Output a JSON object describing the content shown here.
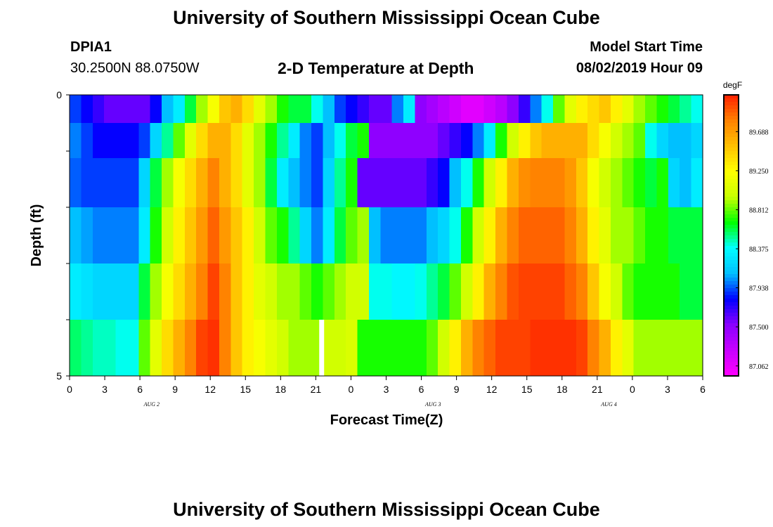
{
  "header": {
    "title": "University of Southern Mississippi Ocean Cube",
    "station_id": "DPIA1",
    "station_coords": "30.2500N 88.0750W",
    "plot_title": "2-D Temperature at Depth",
    "model_label": "Model Start Time",
    "model_start": "08/02/2019 Hour 09"
  },
  "footer": {
    "title": "University of Southern Mississippi Ocean Cube"
  },
  "chart_data": {
    "type": "heatmap",
    "title": "2-D Temperature at Depth",
    "xlabel": "Forecast Time(Z)",
    "ylabel": "Depth (ft)",
    "ylim": [
      0,
      5
    ],
    "y_tick_labels": [
      "0",
      "5"
    ],
    "x_tick_labels": [
      "0",
      "3",
      "6",
      "9",
      "12",
      "15",
      "18",
      "21",
      "0",
      "3",
      "6",
      "9",
      "12",
      "15",
      "18",
      "21",
      "0",
      "3",
      "6"
    ],
    "date_labels": [
      "AUG 2",
      "AUG 3",
      "AUG 4"
    ],
    "colorbar": {
      "unit": "degF",
      "ticks": [
        "89.688",
        "89.250",
        "88.812",
        "88.375",
        "87.938",
        "87.500",
        "87.062"
      ],
      "range": [
        86.95,
        90.1
      ],
      "colors": [
        "#ff00ff",
        "#c800ff",
        "#8a00ff",
        "#0000ff",
        "#00bfff",
        "#00ffff",
        "#00ff00",
        "#c8ff00",
        "#ffff00",
        "#ffc000",
        "#ff8000",
        "#ff2000"
      ]
    },
    "row_depths_ft": [
      0.25,
      0.75,
      1.5,
      2.5,
      3.5,
      4.5
    ],
    "hours": [
      0,
      1,
      2,
      3,
      4,
      5,
      6,
      7,
      8,
      9,
      10,
      11,
      12,
      13,
      14,
      15,
      16,
      17,
      18,
      19,
      20,
      21,
      22,
      23,
      24,
      25,
      26,
      27,
      28,
      29,
      30,
      31,
      32,
      33,
      34,
      35,
      36,
      37,
      38,
      39,
      40,
      41,
      42,
      43,
      44,
      45,
      46,
      47,
      48,
      49,
      50,
      51,
      52,
      53,
      54
    ],
    "temperature_degF": [
      [
        87.9,
        87.8,
        87.7,
        87.6,
        87.6,
        87.6,
        87.6,
        87.8,
        88.1,
        88.3,
        88.6,
        88.9,
        89.2,
        89.5,
        89.6,
        89.4,
        89.1,
        88.9,
        88.7,
        88.6,
        88.6,
        88.4,
        88.1,
        87.9,
        87.8,
        87.7,
        87.6,
        87.6,
        88.0,
        88.3,
        87.5,
        87.4,
        87.3,
        87.2,
        87.1,
        87.1,
        87.2,
        87.3,
        87.5,
        87.7,
        88.0,
        88.4,
        88.8,
        89.1,
        89.3,
        89.4,
        89.5,
        89.3,
        89.1,
        88.9,
        88.8,
        88.7,
        88.6,
        88.5,
        88.4
      ],
      [
        88.0,
        87.9,
        87.8,
        87.8,
        87.8,
        87.8,
        87.9,
        88.2,
        88.5,
        88.8,
        89.1,
        89.4,
        89.6,
        89.6,
        89.4,
        89.1,
        88.9,
        88.7,
        88.5,
        88.3,
        88.0,
        87.9,
        88.1,
        88.4,
        88.6,
        88.7,
        87.5,
        87.5,
        87.5,
        87.5,
        87.5,
        87.5,
        87.6,
        87.7,
        87.8,
        88.0,
        88.3,
        88.7,
        89.0,
        89.3,
        89.5,
        89.6,
        89.6,
        89.6,
        89.6,
        89.4,
        89.2,
        89.0,
        88.9,
        88.8,
        88.4,
        88.2,
        88.1,
        88.1,
        88.2
      ],
      [
        87.95,
        87.9,
        87.9,
        87.9,
        87.9,
        87.9,
        88.2,
        88.6,
        88.9,
        89.2,
        89.4,
        89.6,
        89.8,
        89.6,
        89.4,
        89.1,
        88.9,
        88.6,
        88.3,
        88.1,
        88.0,
        87.9,
        88.2,
        88.5,
        88.7,
        87.6,
        87.6,
        87.6,
        87.6,
        87.6,
        87.6,
        87.7,
        87.8,
        88.1,
        88.4,
        88.7,
        89.0,
        89.3,
        89.6,
        89.75,
        89.8,
        89.8,
        89.8,
        89.7,
        89.5,
        89.2,
        89.0,
        88.9,
        88.8,
        88.7,
        88.6,
        88.7,
        88.2,
        88.1,
        88.3
      ],
      [
        88.1,
        88.05,
        88.0,
        88.0,
        88.0,
        88.0,
        88.3,
        88.7,
        89.0,
        89.3,
        89.5,
        89.7,
        89.9,
        89.7,
        89.5,
        89.3,
        89.0,
        88.8,
        88.7,
        88.5,
        88.2,
        88.0,
        88.3,
        88.6,
        88.8,
        88.9,
        88.1,
        88.0,
        88.0,
        88.0,
        88.0,
        88.1,
        88.2,
        88.4,
        88.7,
        89.0,
        89.3,
        89.6,
        89.8,
        89.9,
        89.9,
        89.9,
        89.9,
        89.8,
        89.6,
        89.3,
        89.1,
        88.9,
        88.9,
        88.8,
        88.7,
        88.7,
        88.6,
        88.6,
        88.6
      ],
      [
        88.3,
        88.25,
        88.2,
        88.2,
        88.2,
        88.2,
        88.6,
        88.9,
        89.2,
        89.4,
        89.6,
        89.8,
        90.0,
        89.8,
        89.5,
        89.3,
        89.1,
        89.0,
        88.9,
        88.9,
        88.8,
        88.7,
        88.8,
        88.9,
        89.0,
        89.0,
        88.4,
        88.4,
        88.35,
        88.35,
        88.4,
        88.5,
        88.6,
        88.8,
        89.0,
        89.3,
        89.6,
        89.8,
        89.95,
        90.0,
        90.0,
        90.0,
        90.0,
        89.9,
        89.8,
        89.5,
        89.2,
        89.0,
        88.8,
        88.7,
        88.7,
        88.7,
        88.7,
        88.6,
        88.6
      ],
      [
        88.55,
        88.5,
        88.45,
        88.45,
        88.4,
        88.4,
        88.8,
        89.1,
        89.4,
        89.6,
        89.8,
        90.0,
        90.05,
        89.8,
        89.5,
        89.3,
        89.2,
        89.1,
        89.0,
        88.9,
        88.9,
        88.9,
        89.0,
        89.0,
        89.05,
        88.7,
        88.7,
        88.7,
        88.7,
        88.7,
        88.7,
        88.8,
        89.0,
        89.3,
        89.6,
        89.8,
        89.9,
        90.0,
        90.0,
        90.0,
        90.05,
        90.05,
        90.05,
        90.05,
        90.0,
        89.8,
        89.6,
        89.3,
        89.1,
        88.9,
        88.9,
        88.9,
        88.9,
        88.9,
        88.9
      ]
    ],
    "gap_hour": 21.5
  }
}
